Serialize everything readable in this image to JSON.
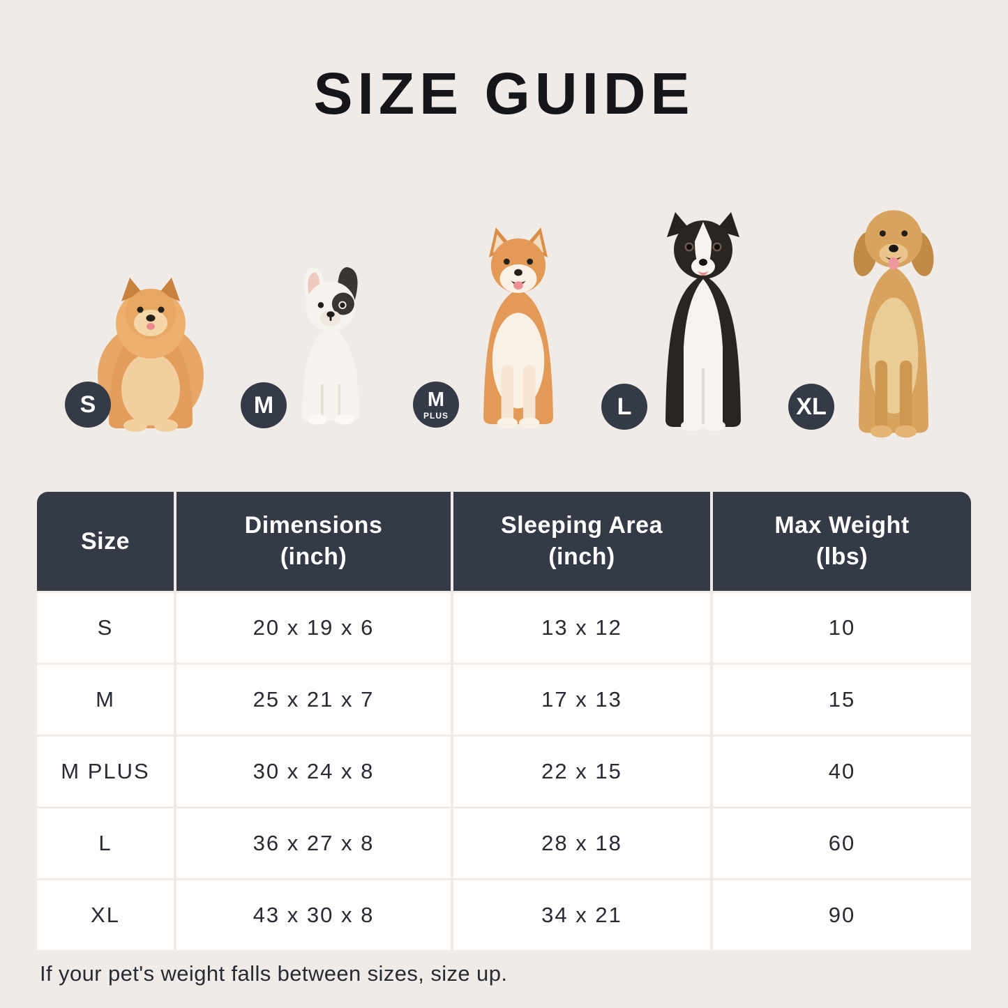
{
  "title": "SIZE GUIDE",
  "colors": {
    "background": "#F0EBE7",
    "header_bg": "#343A46",
    "badge_bg": "#343A46",
    "cell_bg": "#FEFDFC",
    "text_dark": "#262B34",
    "title_color": "#15161A"
  },
  "dogs": [
    {
      "breed": "pomeranian",
      "badge": "S"
    },
    {
      "breed": "french-bulldog",
      "badge": "M"
    },
    {
      "breed": "shiba-inu",
      "badge": "M",
      "badge_sub": "PLUS"
    },
    {
      "breed": "border-collie",
      "badge": "L"
    },
    {
      "breed": "golden-retriever",
      "badge": "XL"
    }
  ],
  "table": {
    "headers": [
      {
        "main": "Size",
        "sub": ""
      },
      {
        "main": "Dimensions",
        "sub": "(inch)"
      },
      {
        "main": "Sleeping Area",
        "sub": "(inch)"
      },
      {
        "main": "Max Weight",
        "sub": "(lbs)"
      }
    ],
    "columns": [
      "size",
      "dimensions",
      "sleeping-area",
      "max-weight"
    ],
    "rows": [
      [
        "S",
        "20 x 19 x 6",
        "13 x 12",
        "10"
      ],
      [
        "M",
        "25 x 21 x 7",
        "17 x 13",
        "15"
      ],
      [
        "M PLUS",
        "30 x 24 x 8",
        "22 x 15",
        "40"
      ],
      [
        "L",
        "36 x 27 x 8",
        "28 x 18",
        "60"
      ],
      [
        "XL",
        "43 x 30 x 8",
        "34 x 21",
        "90"
      ]
    ]
  },
  "footnote": "If your pet's weight falls between sizes, size up."
}
